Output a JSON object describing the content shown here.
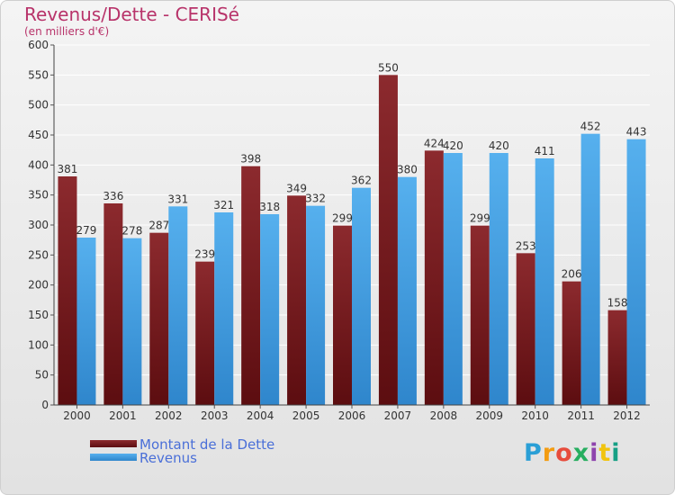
{
  "title": "Revenus/Dette - CERISé",
  "subtitle": "(en milliers d'€)",
  "logo": {
    "letters": [
      "P",
      "r",
      "o",
      "x",
      "i",
      "t",
      "i"
    ],
    "colors": [
      "#2a9fd6",
      "#f39c12",
      "#e74c3c",
      "#27ae60",
      "#8e44ad",
      "#f1c40f",
      "#16a085"
    ]
  },
  "chart_data": {
    "type": "bar",
    "categories": [
      "2000",
      "2001",
      "2002",
      "2003",
      "2004",
      "2005",
      "2006",
      "2007",
      "2008",
      "2009",
      "2010",
      "2011",
      "2012"
    ],
    "series": [
      {
        "name": "Montant de la Dette",
        "color": "#7b1e22",
        "values": [
          381,
          336,
          287,
          239,
          398,
          349,
          299,
          550,
          424,
          299,
          253,
          206,
          158
        ]
      },
      {
        "name": "Revenus",
        "color": "#4aa3e6",
        "values": [
          279,
          278,
          331,
          321,
          318,
          332,
          362,
          380,
          420,
          420,
          411,
          452,
          443
        ]
      }
    ],
    "ylim": [
      0,
      600
    ],
    "yticks": [
      "0",
      "50",
      "100",
      "150",
      "200",
      "250",
      "300",
      "350",
      "400",
      "450",
      "500",
      "550",
      "600"
    ],
    "grid": true,
    "legend": "bottom-left"
  }
}
